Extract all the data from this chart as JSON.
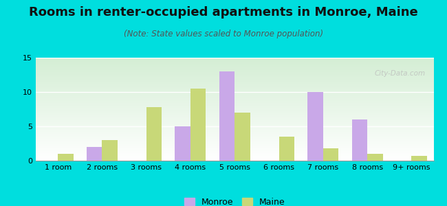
{
  "title": "Rooms in renter-occupied apartments in Monroe, Maine",
  "subtitle": "(Note: State values scaled to Monroe population)",
  "categories": [
    "1 room",
    "2 rooms",
    "3 rooms",
    "4 rooms",
    "5 rooms",
    "6 rooms",
    "7 rooms",
    "8 rooms",
    "9+ rooms"
  ],
  "monroe_values": [
    0,
    2,
    0,
    5,
    13,
    0,
    10,
    6,
    0
  ],
  "maine_values": [
    1,
    3,
    7.8,
    10.5,
    7,
    3.5,
    1.8,
    1,
    0.7
  ],
  "monroe_color": "#c9a8e8",
  "maine_color": "#c8d878",
  "background_color": "#00dede",
  "ylim": [
    0,
    15
  ],
  "yticks": [
    0,
    5,
    10,
    15
  ],
  "legend_labels": [
    "Monroe",
    "Maine"
  ],
  "title_fontsize": 13,
  "subtitle_fontsize": 8.5,
  "tick_fontsize": 8,
  "bar_width": 0.35,
  "watermark": "City-Data.com"
}
